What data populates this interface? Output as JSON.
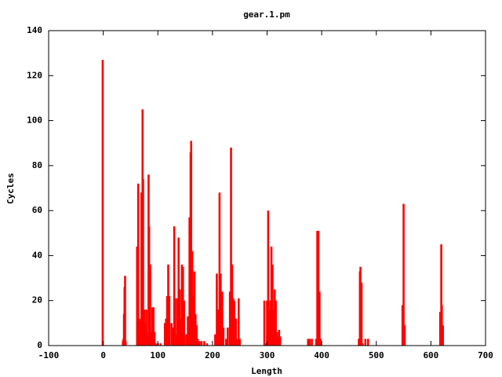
{
  "chart_data": {
    "type": "bar",
    "title": "gear.1.pm",
    "x_label": "Length",
    "y_label": "Cycles",
    "color": "#ff0000",
    "x": [
      -1,
      36,
      37,
      38,
      39,
      40,
      41,
      62,
      64,
      66,
      68,
      70,
      72,
      73,
      75,
      77,
      79,
      81,
      83,
      84,
      86,
      88,
      90,
      92,
      94,
      96,
      100,
      105,
      113,
      115,
      117,
      119,
      121,
      125,
      127,
      130,
      132,
      134,
      136,
      138,
      140,
      142,
      144,
      146,
      148,
      152,
      155,
      158,
      160,
      161,
      163,
      165,
      167,
      169,
      171,
      173,
      176,
      180,
      185,
      190,
      205,
      208,
      211,
      213,
      215,
      218,
      220,
      225,
      228,
      232,
      234,
      236,
      238,
      240,
      243,
      246,
      248,
      250,
      295,
      297,
      300,
      302,
      304,
      306,
      308,
      310,
      312,
      314,
      316,
      318,
      320,
      322,
      324,
      375,
      378,
      382,
      390,
      392,
      394,
      396,
      398,
      468,
      470,
      471,
      473,
      475,
      480,
      485,
      548,
      550,
      552,
      617,
      619,
      620,
      622
    ],
    "values": [
      127,
      2,
      3,
      14,
      26,
      31,
      2,
      44,
      72,
      12,
      11,
      68,
      105,
      74,
      16,
      10,
      16,
      5,
      76,
      53,
      36,
      6,
      17,
      17,
      6,
      1,
      1,
      1,
      10,
      12,
      22,
      36,
      22,
      10,
      8,
      53,
      21,
      5,
      21,
      48,
      25,
      12,
      36,
      35,
      20,
      5,
      13,
      57,
      86,
      91,
      42,
      22,
      33,
      14,
      9,
      3,
      2,
      2,
      2,
      1,
      5,
      32,
      16,
      68,
      32,
      24,
      8,
      3,
      8,
      24,
      88,
      36,
      21,
      20,
      12,
      3,
      21,
      3,
      20,
      1,
      20,
      60,
      16,
      20,
      44,
      36,
      16,
      25,
      20,
      6,
      4,
      7,
      4,
      3,
      3,
      3,
      3,
      51,
      51,
      24,
      3,
      3,
      33,
      35,
      28,
      1,
      3,
      3,
      18,
      63,
      9,
      15,
      45,
      18,
      9
    ],
    "xlim": [
      -100,
      700
    ],
    "xticks": [
      -100,
      0,
      100,
      200,
      300,
      400,
      500,
      600,
      700
    ],
    "ylim": [
      0,
      140
    ],
    "yticks": [
      0,
      20,
      40,
      60,
      80,
      100,
      120,
      140
    ]
  }
}
